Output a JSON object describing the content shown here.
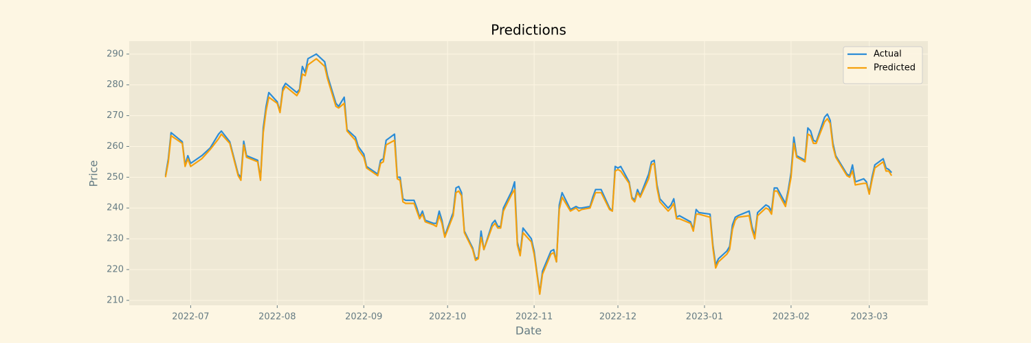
{
  "chart_data": {
    "type": "line",
    "title": "Predictions",
    "xlabel": "Date",
    "ylabel": "Price",
    "x": [
      "2022-06-22",
      "2022-06-23",
      "2022-06-24",
      "2022-06-28",
      "2022-06-29",
      "2022-06-30",
      "2022-07-01",
      "2022-07-05",
      "2022-07-08",
      "2022-07-11",
      "2022-07-12",
      "2022-07-15",
      "2022-07-18",
      "2022-07-19",
      "2022-07-20",
      "2022-07-21",
      "2022-07-25",
      "2022-07-26",
      "2022-07-27",
      "2022-07-28",
      "2022-07-29",
      "2022-08-01",
      "2022-08-02",
      "2022-08-03",
      "2022-08-04",
      "2022-08-08",
      "2022-08-09",
      "2022-08-10",
      "2022-08-11",
      "2022-08-12",
      "2022-08-15",
      "2022-08-18",
      "2022-08-19",
      "2022-08-22",
      "2022-08-23",
      "2022-08-25",
      "2022-08-26",
      "2022-08-29",
      "2022-08-30",
      "2022-09-01",
      "2022-09-02",
      "2022-09-06",
      "2022-09-07",
      "2022-09-08",
      "2022-09-09",
      "2022-09-12",
      "2022-09-13",
      "2022-09-14",
      "2022-09-15",
      "2022-09-16",
      "2022-09-19",
      "2022-09-20",
      "2022-09-21",
      "2022-09-22",
      "2022-09-23",
      "2022-09-26",
      "2022-09-27",
      "2022-09-28",
      "2022-09-29",
      "2022-09-30",
      "2022-10-03",
      "2022-10-04",
      "2022-10-05",
      "2022-10-06",
      "2022-10-07",
      "2022-10-10",
      "2022-10-11",
      "2022-10-12",
      "2022-10-13",
      "2022-10-14",
      "2022-10-17",
      "2022-10-18",
      "2022-10-19",
      "2022-10-20",
      "2022-10-21",
      "2022-10-24",
      "2022-10-25",
      "2022-10-26",
      "2022-10-27",
      "2022-10-28",
      "2022-10-31",
      "2022-11-01",
      "2022-11-02",
      "2022-11-03",
      "2022-11-04",
      "2022-11-07",
      "2022-11-08",
      "2022-11-09",
      "2022-11-10",
      "2022-11-11",
      "2022-11-14",
      "2022-11-15",
      "2022-11-16",
      "2022-11-17",
      "2022-11-18",
      "2022-11-21",
      "2022-11-22",
      "2022-11-23",
      "2022-11-25",
      "2022-11-28",
      "2022-11-29",
      "2022-11-30",
      "2022-12-01",
      "2022-12-02",
      "2022-12-05",
      "2022-12-06",
      "2022-12-07",
      "2022-12-08",
      "2022-12-09",
      "2022-12-12",
      "2022-12-13",
      "2022-12-14",
      "2022-12-15",
      "2022-12-16",
      "2022-12-19",
      "2022-12-20",
      "2022-12-21",
      "2022-12-22",
      "2022-12-23",
      "2022-12-27",
      "2022-12-28",
      "2022-12-29",
      "2022-12-30",
      "2023-01-03",
      "2023-01-04",
      "2023-01-05",
      "2023-01-06",
      "2023-01-09",
      "2023-01-10",
      "2023-01-11",
      "2023-01-12",
      "2023-01-13",
      "2023-01-17",
      "2023-01-18",
      "2023-01-19",
      "2023-01-20",
      "2023-01-23",
      "2023-01-24",
      "2023-01-25",
      "2023-01-26",
      "2023-01-27",
      "2023-01-30",
      "2023-01-31",
      "2023-02-01",
      "2023-02-02",
      "2023-02-03",
      "2023-02-06",
      "2023-02-07",
      "2023-02-08",
      "2023-02-09",
      "2023-02-10",
      "2023-02-13",
      "2023-02-14",
      "2023-02-15",
      "2023-02-16",
      "2023-02-17",
      "2023-02-21",
      "2023-02-22",
      "2023-02-23",
      "2023-02-24",
      "2023-02-27",
      "2023-02-28",
      "2023-03-01",
      "2023-03-02",
      "2023-03-03",
      "2023-03-06",
      "2023-03-07",
      "2023-03-08",
      "2023-03-09"
    ],
    "series": [
      {
        "name": "Actual",
        "color": "#2b8cd6",
        "values": [
          250.5,
          256,
          264.5,
          261.5,
          254,
          257,
          254.5,
          257,
          259.5,
          264,
          265,
          261.5,
          251,
          250,
          261.7,
          257,
          255.5,
          249.5,
          266,
          273,
          277.5,
          274.5,
          271.5,
          279,
          280.5,
          277.5,
          278.5,
          286,
          284,
          288.5,
          290,
          287.5,
          283,
          274,
          273,
          276,
          265.5,
          263,
          260,
          257.5,
          253.5,
          251,
          255.5,
          256,
          262,
          264,
          250,
          250,
          243,
          242.5,
          242.5,
          240,
          237,
          239,
          236,
          235,
          235,
          239,
          236,
          231,
          238.5,
          246.5,
          247,
          245,
          232.5,
          227,
          223.5,
          224,
          232.5,
          226.5,
          235,
          236,
          234,
          234,
          240,
          245.5,
          248.5,
          229,
          225,
          233.5,
          230,
          226,
          219,
          212.5,
          219.5,
          226,
          226.5,
          222.5,
          241,
          245,
          239.5,
          240,
          240.5,
          240,
          240,
          240.5,
          243.5,
          246,
          246,
          240,
          239,
          253.5,
          253,
          253.5,
          248.5,
          243.5,
          242.5,
          246,
          244,
          251,
          255,
          255.5,
          247.5,
          243,
          240,
          241,
          243,
          237,
          237.5,
          235.5,
          233,
          239.5,
          238.5,
          238,
          228,
          221.5,
          223.5,
          226,
          227.5,
          234.5,
          237,
          237.5,
          239,
          234,
          231,
          238.5,
          241,
          240.5,
          239,
          246.5,
          246.5,
          241.5,
          246,
          251.5,
          263,
          257,
          255.5,
          266,
          265,
          262,
          261.5,
          269.5,
          270.5,
          268.5,
          261,
          257,
          251,
          250.5,
          254,
          248.5,
          249.5,
          248.5,
          245,
          250,
          254,
          256,
          253,
          252.5,
          251.5
        ]
      },
      {
        "name": "Predicted",
        "color": "#f5a00c",
        "values": [
          250,
          255,
          263.5,
          261,
          253.5,
          256,
          253.5,
          256,
          259,
          262.5,
          264,
          261,
          250.5,
          249,
          260.5,
          256.5,
          255,
          249,
          264.5,
          271.5,
          276,
          274,
          271,
          278,
          279.5,
          276.5,
          278,
          283.5,
          283,
          286.5,
          288.5,
          286,
          282,
          273,
          272.5,
          274,
          265,
          262,
          259,
          256.5,
          253,
          250.5,
          254.5,
          255,
          260.5,
          262,
          249.5,
          249,
          242,
          241.5,
          241.5,
          239,
          236.5,
          238,
          235.5,
          234.5,
          234,
          237.5,
          235,
          230.5,
          237.5,
          245,
          245.5,
          244,
          232,
          226.5,
          223,
          223.5,
          230.5,
          226.5,
          234,
          235,
          233.5,
          233.5,
          239,
          244.5,
          246,
          228,
          224.5,
          232,
          229,
          225,
          218.5,
          212,
          218.5,
          225,
          225.5,
          222.5,
          239.5,
          243.5,
          239,
          239.5,
          240,
          239,
          239.5,
          240,
          242.5,
          245,
          245,
          239.5,
          239,
          252,
          252.5,
          252,
          248,
          243,
          242,
          245,
          243.5,
          249.5,
          254,
          254.5,
          246.5,
          242,
          239,
          240,
          241.5,
          236.5,
          236.5,
          235,
          232.5,
          238,
          238,
          237,
          227,
          220.5,
          222.5,
          225,
          226.5,
          233,
          236,
          237,
          237.5,
          233,
          230,
          237.5,
          240,
          239.5,
          238,
          245.5,
          245.5,
          240.5,
          245,
          250,
          261,
          256.5,
          255,
          264,
          263.5,
          261,
          261,
          268,
          269,
          267.5,
          260,
          256.5,
          250.5,
          250,
          252,
          247.5,
          248,
          248,
          244.5,
          249,
          253,
          255,
          252,
          252,
          250.5
        ]
      }
    ],
    "xlim": [
      "2022-06-09",
      "2023-03-22"
    ],
    "xticks": [
      {
        "value": "2022-07-01",
        "label": "2022-07"
      },
      {
        "value": "2022-08-01",
        "label": "2022-08"
      },
      {
        "value": "2022-09-01",
        "label": "2022-09"
      },
      {
        "value": "2022-10-01",
        "label": "2022-10"
      },
      {
        "value": "2022-11-01",
        "label": "2022-11"
      },
      {
        "value": "2022-12-01",
        "label": "2022-12"
      },
      {
        "value": "2023-01-01",
        "label": "2023-01"
      },
      {
        "value": "2023-02-01",
        "label": "2023-02"
      },
      {
        "value": "2023-03-01",
        "label": "2023-03"
      }
    ],
    "ylim": [
      208.4,
      294.2
    ],
    "yticks": [
      210,
      220,
      230,
      240,
      250,
      260,
      270,
      280,
      290
    ],
    "grid": true,
    "legend": "upper right"
  }
}
